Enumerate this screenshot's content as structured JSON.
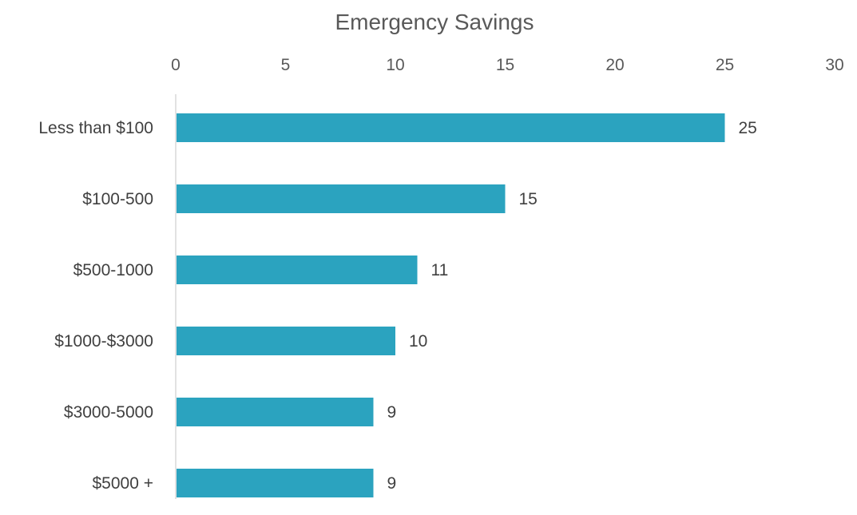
{
  "chart_data": {
    "type": "bar",
    "orientation": "horizontal",
    "title": "Emergency Savings",
    "categories": [
      "Less than $100",
      "$100-500",
      "$500-1000",
      "$1000-$3000",
      "$3000-5000",
      "$5000 +"
    ],
    "values": [
      25,
      15,
      11,
      10,
      9,
      9
    ],
    "xlabel": "",
    "ylabel": "",
    "xlim": [
      0,
      30
    ],
    "xticks": [
      "0",
      "5",
      "10",
      "15",
      "20",
      "25",
      "30"
    ],
    "axis_position": "top",
    "grid": false,
    "data_labels": true,
    "bar_color": "#2ba3bf",
    "axis_color": "#d9d9d9"
  }
}
